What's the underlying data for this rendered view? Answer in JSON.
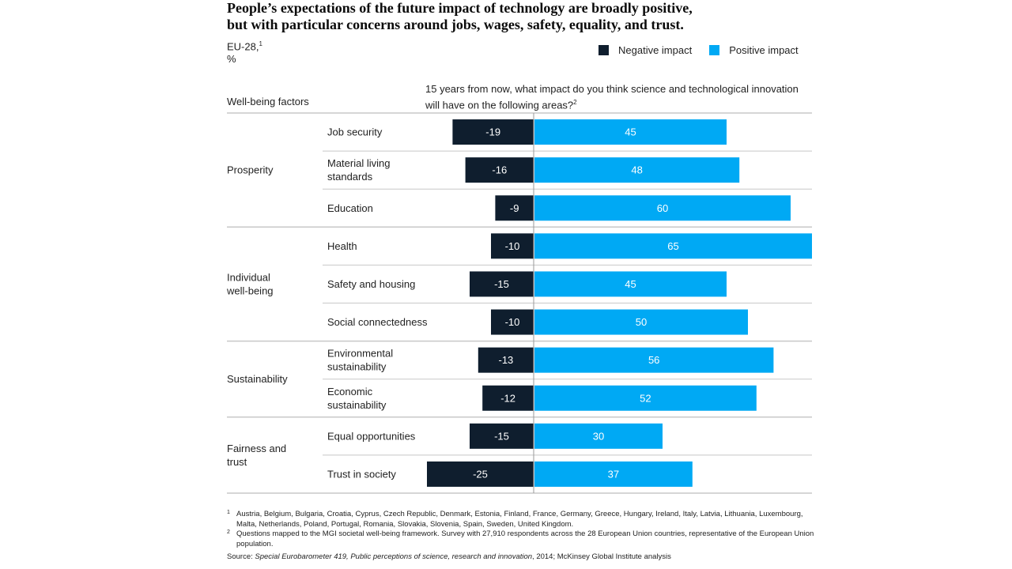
{
  "title": {
    "line1": "People’s expectations of the future impact of technology are broadly positive,",
    "line2": "but with particular concerns around jobs, wages, safety, equality, and trust."
  },
  "subtitle": {
    "region": "EU-28,",
    "region_note": "1",
    "unit": "%"
  },
  "legend": {
    "negative_label": "Negative impact",
    "positive_label": "Positive impact"
  },
  "headers": {
    "factors": "Well-being factors",
    "question_line1": "15 years from now, what impact do you think science and technological innovation",
    "question_line2": "will have on the following areas?",
    "question_note": "2"
  },
  "colors": {
    "negative": "#0f1e2e",
    "positive": "#00a9f4",
    "rule": "#c8c8c8",
    "axis": "#9a9a9a"
  },
  "chart_data": {
    "type": "bar",
    "orientation": "horizontal-diverging",
    "title": "People’s expectations of the future impact of technology are broadly positive, but with particular concerns around jobs, wages, safety, equality, and trust.",
    "xlabel": "15 years from now, what impact do you think science and technological innovation will have on the following areas?",
    "ylabel": "Well-being factors",
    "unit": "%",
    "xlim": [
      -25,
      65
    ],
    "groups": [
      {
        "name": "Prosperity",
        "categories": [
          {
            "label": "Job security",
            "negative": -19,
            "positive": 45
          },
          {
            "label": "Material living standards",
            "negative": -16,
            "positive": 48
          },
          {
            "label": "Education",
            "negative": -9,
            "positive": 60
          }
        ]
      },
      {
        "name": "Individual well-being",
        "categories": [
          {
            "label": "Health",
            "negative": -10,
            "positive": 65
          },
          {
            "label": "Safety and housing",
            "negative": -15,
            "positive": 45
          },
          {
            "label": "Social connectedness",
            "negative": -10,
            "positive": 50
          }
        ]
      },
      {
        "name": "Sustainability",
        "categories": [
          {
            "label": "Environmental sustainability",
            "negative": -13,
            "positive": 56
          },
          {
            "label": "Economic sustainability",
            "negative": -12,
            "positive": 52
          }
        ]
      },
      {
        "name": "Fairness and trust",
        "categories": [
          {
            "label": "Equal opportunities",
            "negative": -15,
            "positive": 30
          },
          {
            "label": "Trust in society",
            "negative": -25,
            "positive": 37
          }
        ]
      }
    ],
    "series": [
      {
        "name": "Negative impact",
        "color": "#0f1e2e"
      },
      {
        "name": "Positive impact",
        "color": "#00a9f4"
      }
    ]
  },
  "footnotes": [
    {
      "mark": "1",
      "text": "Austria, Belgium, Bulgaria, Croatia, Cyprus, Czech Republic, Denmark, Estonia, Finland, France, Germany, Greece, Hungary, Ireland, Italy, Latvia, Lithuania, Luxembourg, Malta, Netherlands, Poland, Portugal, Romania, Slovakia, Slovenia, Spain, Sweden, United Kingdom."
    },
    {
      "mark": "2",
      "text": "Questions mapped to the MGI societal well-being framework. Survey with 27,910 respondents across the 28 European Union countries, representative of the European Union population."
    }
  ],
  "source": {
    "prefix": "Source: ",
    "italic": "Special Eurobarometer 419, Public perceptions of science, research and innovation",
    "suffix": ", 2014; McKinsey Global Institute analysis"
  }
}
